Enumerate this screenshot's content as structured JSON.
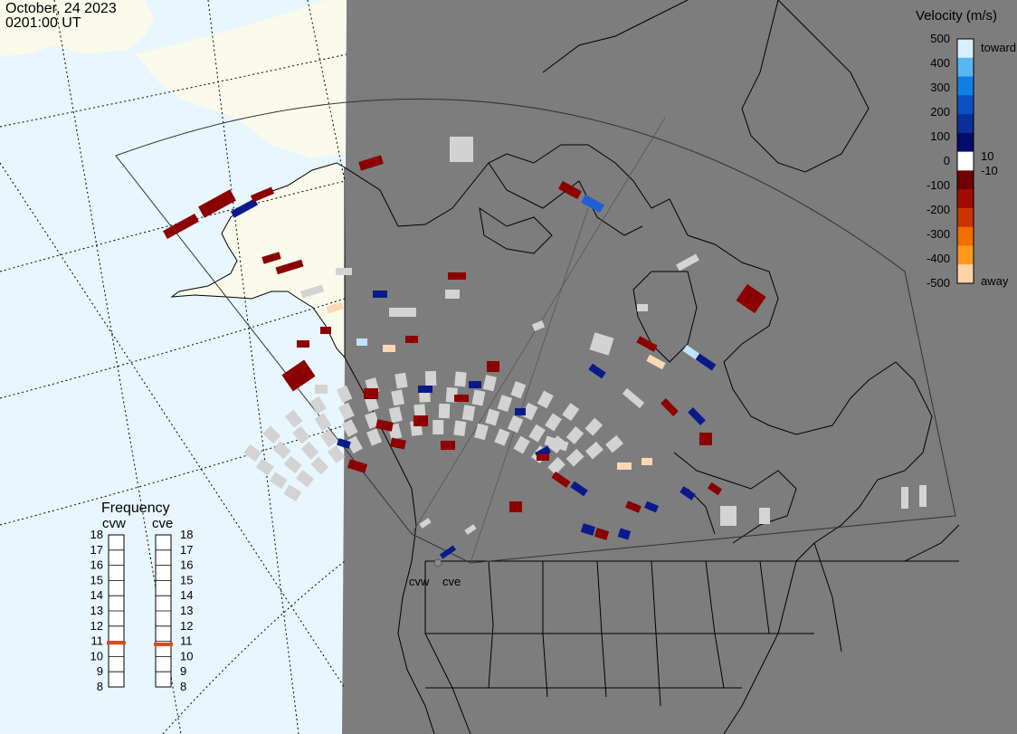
{
  "header": {
    "date": "October, 24 2023",
    "time": "0201:00 UT"
  },
  "colors": {
    "ocean_day": "#e8f6ff",
    "land_day": "#fbfbec",
    "night": "#7d7d7d",
    "ground_scatter": "#d3d3d3"
  },
  "colorbar": {
    "title": "Velocity (m/s)",
    "top_label": "toward",
    "bottom_label": "away",
    "ticks_left": [
      "500",
      "400",
      "300",
      "200",
      "100",
      "0",
      "-100",
      "-200",
      "-300",
      "-400",
      "-500"
    ],
    "ticks_right_upper": "10",
    "ticks_right_lower": "-10",
    "stops_top_to_bottom": [
      "#d8efff",
      "#56b7f2",
      "#0f7fe8",
      "#0b4fc4",
      "#0a2f9a",
      "#020c6a",
      "#ffffff",
      "#6e0000",
      "#a10a00",
      "#cc3300",
      "#f06d00",
      "#ff9a1a",
      "#ffd3a8"
    ]
  },
  "frequency": {
    "title": "Frequency",
    "radars": [
      {
        "name": "cvw",
        "value": 10.9
      },
      {
        "name": "cve",
        "value": 10.8
      }
    ],
    "scale": [
      "18",
      "17",
      "16",
      "15",
      "14",
      "13",
      "12",
      "11",
      "10",
      "9",
      "8"
    ],
    "marker_color": "#e0481e"
  },
  "radar_sites": {
    "cvw": "cvw",
    "cve": "cve"
  }
}
